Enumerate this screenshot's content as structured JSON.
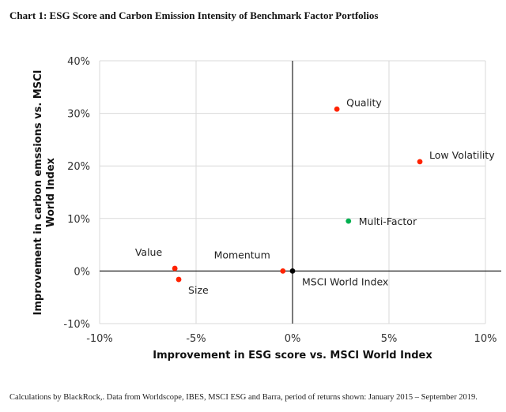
{
  "title": "Chart 1: ESG Score and Carbon Emission Intensity of Benchmark Factor Portfolios",
  "footer": "Calculations by BlackRock,. Data from Worldscope, IBES, MSCI ESG and Barra, period of returns shown: January 2015 – September 2019.",
  "chart_data": {
    "type": "scatter",
    "title": "Chart 1: ESG Score and Carbon Emission Intensity of Benchmark Factor Portfolios",
    "xlabel": "Improvement in ESG score vs. MSCI World Index",
    "ylabel_lines": [
      "Improvement in carbon emssions vs. MSCI",
      "World Index"
    ],
    "xlim": [
      -10,
      10
    ],
    "ylim": [
      -10,
      40
    ],
    "x_ticks": [
      -10,
      -5,
      0,
      5,
      10
    ],
    "x_tick_labels": [
      "-10%",
      "-5%",
      "0%",
      "5%",
      "10%"
    ],
    "y_ticks": [
      -10,
      0,
      10,
      20,
      30,
      40
    ],
    "y_tick_labels": [
      "-10%",
      "0%",
      "10%",
      "20%",
      "30%",
      "40%"
    ],
    "grid": true,
    "colors": {
      "factor": "#ff2200",
      "multi": "#00b050",
      "index": "#000000",
      "grid": "#d9d9d9"
    },
    "points": [
      {
        "name": "Quality",
        "x": 2.3,
        "y": 30.8,
        "kind": "factor",
        "label_pos": "right-up"
      },
      {
        "name": "Low Volatility",
        "x": 6.6,
        "y": 20.8,
        "kind": "factor",
        "label_pos": "right-up"
      },
      {
        "name": "Multi-Factor",
        "x": 2.9,
        "y": 9.5,
        "kind": "multi",
        "label_pos": "right"
      },
      {
        "name": "Value",
        "x": -6.1,
        "y": 0.5,
        "kind": "factor",
        "label_pos": "left-up"
      },
      {
        "name": "Size",
        "x": -5.9,
        "y": -1.6,
        "kind": "factor",
        "label_pos": "right-down"
      },
      {
        "name": "Momentum",
        "x": -0.5,
        "y": 0.0,
        "kind": "factor",
        "label_pos": "left-up"
      },
      {
        "name": "MSCI World Index",
        "x": 0.0,
        "y": 0.0,
        "kind": "index",
        "label_pos": "right-down"
      }
    ]
  }
}
